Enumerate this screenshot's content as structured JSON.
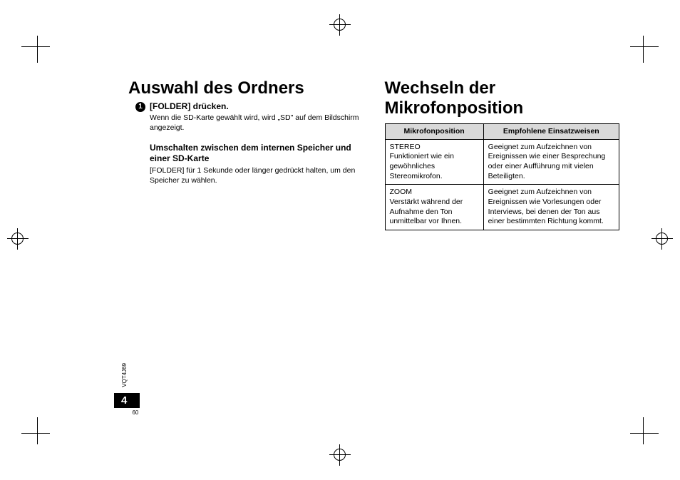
{
  "document_id": "VQT4J69",
  "page_number_display": "4",
  "page_number_small": "60",
  "left": {
    "heading": "Auswahl des Ordners",
    "step_number": "1",
    "step_title": "[FOLDER] drücken.",
    "step_text": "Wenn die SD-Karte gewählt wird, wird „SD\" auf dem Bildschirm angezeigt.",
    "sub_heading": "Umschalten zwischen dem internen Speicher und einer SD-Karte",
    "sub_text": "[FOLDER] für 1 Sekunde oder länger gedrückt halten, um den Speicher zu wählen."
  },
  "right": {
    "heading": "Wechseln der Mikrofonposition",
    "table": {
      "header1": "Mikrofonposition",
      "header2": "Empfohlene Einsatzweisen",
      "row1_mode": "STEREO",
      "row1_desc": "Funktioniert wie ein gewöhnliches Stereomikrofon.",
      "row1_usage": "Geeignet zum Aufzeichnen von Ereignissen wie einer Besprechung oder einer Aufführung mit vielen Beteiligten.",
      "row2_mode": "ZOOM",
      "row2_desc": "Verstärkt während der Aufnahme den Ton unmittelbar vor Ihnen.",
      "row2_usage": "Geeignet zum Aufzeichnen von Ereignissen wie Vorlesungen oder Interviews, bei denen der Ton aus einer bestimmten Richtung kommt."
    }
  }
}
